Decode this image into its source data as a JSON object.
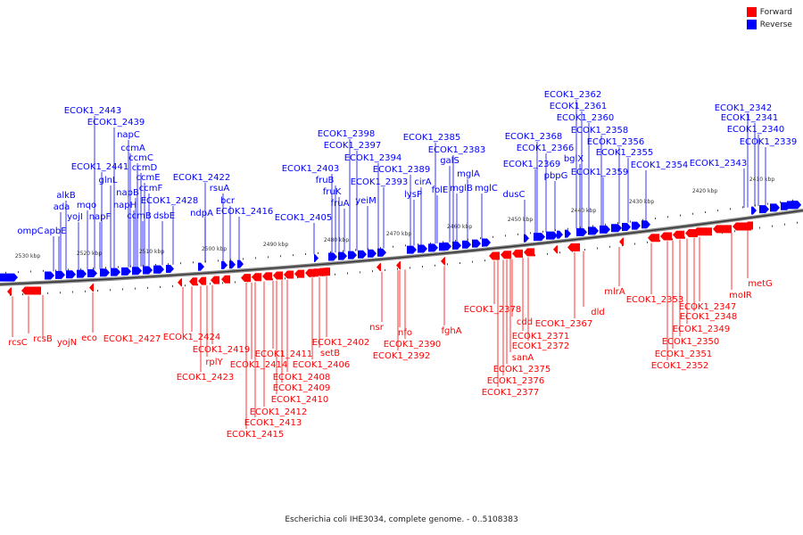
{
  "legend": [
    {
      "label": "Forward",
      "color": "#ff0000"
    },
    {
      "label": "Reverse",
      "color": "#0000ff"
    }
  ],
  "caption": "Escherichia coli IHE3034, complete genome. - 0..5108383",
  "ticks": [
    "2530 kbp",
    "2520 kbp",
    "2510 kbp",
    "2500 kbp",
    "2490 kbp",
    "2480 kbp",
    "2470 kbp",
    "2460 kbp",
    "2450 kbp",
    "2440 kbp",
    "2430 kbp",
    "2420 kbp",
    "2410 kbp"
  ],
  "reverse_genes": [
    "ompC",
    "apbE",
    "alkB",
    "ada",
    "yojI",
    "mqo",
    "napF",
    "ECOK1_2443",
    "ECOK1_2439",
    "glnL",
    "ECOK1_2441",
    "napC",
    "ccmA",
    "ccmC",
    "ccmD",
    "ccmE",
    "ccmF",
    "napB",
    "napH",
    "ccmB",
    "ECOK1_2428",
    "dsbE",
    "ECOK1_2422",
    "ndpA",
    "rsuA",
    "bcr",
    "ECOK1_2416",
    "ECOK1_2405",
    "ECOK1_2403",
    "fruB",
    "fruK",
    "fruA",
    "ECOK1_2398",
    "ECOK1_2397",
    "yeiM",
    "ECOK1_2394",
    "ECOK1_2393",
    "ECOK1_2389",
    "cirA",
    "lysP",
    "folE",
    "ECOK1_2385",
    "ECOK1_2383",
    "galS",
    "mglB",
    "mglA",
    "mglC",
    "dusC",
    "ECOK1_2369",
    "ECOK1_2368",
    "ECOK1_2366",
    "pbpG",
    "bglX",
    "ECOK1_2362",
    "ECOK1_2361",
    "ECOK1_2360",
    "ECOK1_2358",
    "ECOK1_2359",
    "ECOK1_2356",
    "ECOK1_2355",
    "ECOK1_2354",
    "ECOK1_2343",
    "ECOK1_2342",
    "ECOK1_2341",
    "ECOK1_2340",
    "ECOK1_2339"
  ],
  "forward_genes": [
    "rcsC",
    "rcsB",
    "yojN",
    "eco",
    "ECOK1_2427",
    "ECOK1_2424",
    "ECOK1_2419",
    "rplY",
    "ECOK1_2423",
    "ECOK1_2414",
    "ECOK1_2411",
    "ECOK1_2408",
    "ECOK1_2409",
    "ECOK1_2410",
    "ECOK1_2412",
    "ECOK1_2413",
    "ECOK1_2415",
    "ECOK1_2406",
    "ECOK1_2402",
    "setB",
    "nsr",
    "nfo",
    "ECOK1_2390",
    "ECOK1_2392",
    "fghA",
    "ECOK1_2378",
    "cdd",
    "ECOK1_2371",
    "ECOK1_2372",
    "sanA",
    "ECOK1_2375",
    "ECOK1_2376",
    "ECOK1_2377",
    "ECOK1_2367",
    "dld",
    "mlrA",
    "ECOK1_2353",
    "ECOK1_2347",
    "ECOK1_2348",
    "ECOK1_2349",
    "ECOK1_2350",
    "ECOK1_2351",
    "ECOK1_2352",
    "moIR",
    "metG"
  ]
}
